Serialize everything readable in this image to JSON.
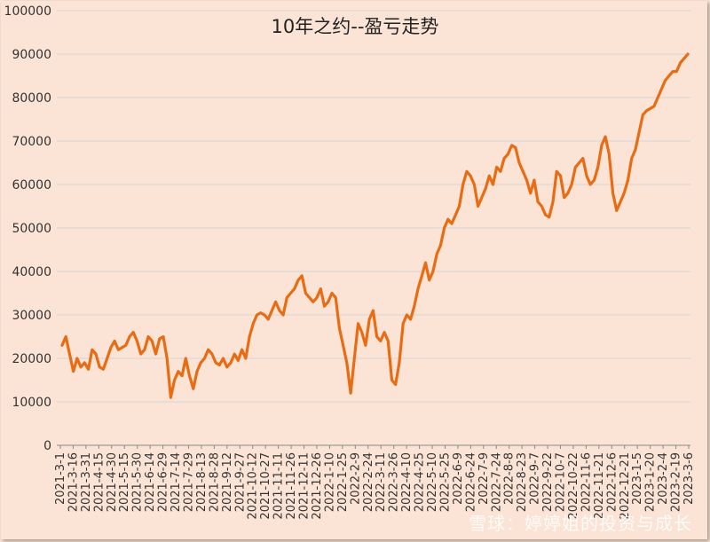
{
  "title": "10年之约--盈亏走势",
  "watermark": "雪球：婷婷姐的投资与成长",
  "colors": {
    "line": "#e86c14",
    "grid": "#d6d6d6",
    "background": "#fbe3d5"
  },
  "chart_data": {
    "type": "line",
    "title": "10年之约--盈亏走势",
    "xlabel": "",
    "ylabel": "",
    "ylim": [
      0,
      100000
    ],
    "yticks": [
      0,
      10000,
      20000,
      30000,
      40000,
      50000,
      60000,
      70000,
      80000,
      90000,
      100000
    ],
    "grid": "horizontal",
    "legend": "none",
    "x_tick_labels": [
      "2021-3-1",
      "2021-3-16",
      "2021-3-31",
      "2021-4-15",
      "2021-4-30",
      "2021-5-15",
      "2021-5-30",
      "2021-6-14",
      "2021-6-29",
      "2021-7-14",
      "2021-7-29",
      "2021-8-13",
      "2021-8-28",
      "2021-9-12",
      "2021-9-27",
      "2021-10-12",
      "2021-10-27",
      "2021-11-11",
      "2021-11-26",
      "2021-12-11",
      "2021-12-26",
      "2022-1-10",
      "2022-1-25",
      "2022-2-9",
      "2022-2-24",
      "2022-3-11",
      "2022-3-26",
      "2022-4-10",
      "2022-4-25",
      "2022-5-10",
      "2022-5-25",
      "2022-6-9",
      "2022-6-24",
      "2022-7-9",
      "2022-7-24",
      "2022-8-8",
      "2022-8-23",
      "2022-9-7",
      "2022-9-22",
      "2022-10-7",
      "2022-10-22",
      "2022-11-6",
      "2022-11-21",
      "2022-12-6",
      "2022-12-21",
      "2023-1-5",
      "2023-1-20",
      "2023-2-4",
      "2023-2-19",
      "2023-3-6"
    ],
    "series": [
      {
        "values": [
          23000,
          25000,
          21000,
          17000,
          20000,
          18000,
          19000,
          17500,
          22000,
          21000,
          18000,
          17500,
          20000,
          22500,
          24000,
          22000,
          22500,
          23000,
          25000,
          26000,
          24000,
          21000,
          22000,
          25000,
          24000,
          21000,
          24500,
          25000,
          20000,
          11000,
          15000,
          17000,
          16000,
          20000,
          16000,
          13000,
          17000,
          19000,
          20000,
          22000,
          21000,
          19000,
          18500,
          20000,
          18000,
          19000,
          21000,
          19500,
          22000,
          20000,
          25000,
          28000,
          30000,
          30500,
          30000,
          29000,
          31000,
          33000,
          31000,
          30000,
          34000,
          35000,
          36000,
          38000,
          39000,
          35000,
          34000,
          33000,
          34000,
          36000,
          32000,
          33000,
          35000,
          34000,
          27000,
          23000,
          19000,
          12000,
          20000,
          28000,
          26000,
          23000,
          29000,
          31000,
          25000,
          24000,
          26000,
          24000,
          15000,
          14000,
          19000,
          28000,
          30000,
          29000,
          32000,
          36000,
          39000,
          42000,
          38000,
          40000,
          44000,
          46000,
          50000,
          52000,
          51000,
          53000,
          55000,
          60000,
          63000,
          62000,
          60000,
          55000,
          57000,
          59000,
          62000,
          60000,
          64000,
          63000,
          66000,
          67000,
          69000,
          68500,
          65000,
          63000,
          61000,
          58000,
          61000,
          56000,
          55000,
          53000,
          52500,
          56000,
          63000,
          62000,
          57000,
          58000,
          60000,
          64000,
          65000,
          66000,
          62000,
          60000,
          61000,
          64000,
          69000,
          71000,
          67000,
          58000,
          54000,
          56000,
          58000,
          61000,
          66000,
          68000,
          72000,
          76000,
          77000,
          77500,
          78000,
          80000,
          82000,
          84000,
          85000,
          86000,
          86000,
          88000,
          89000,
          90000
        ]
      }
    ]
  }
}
